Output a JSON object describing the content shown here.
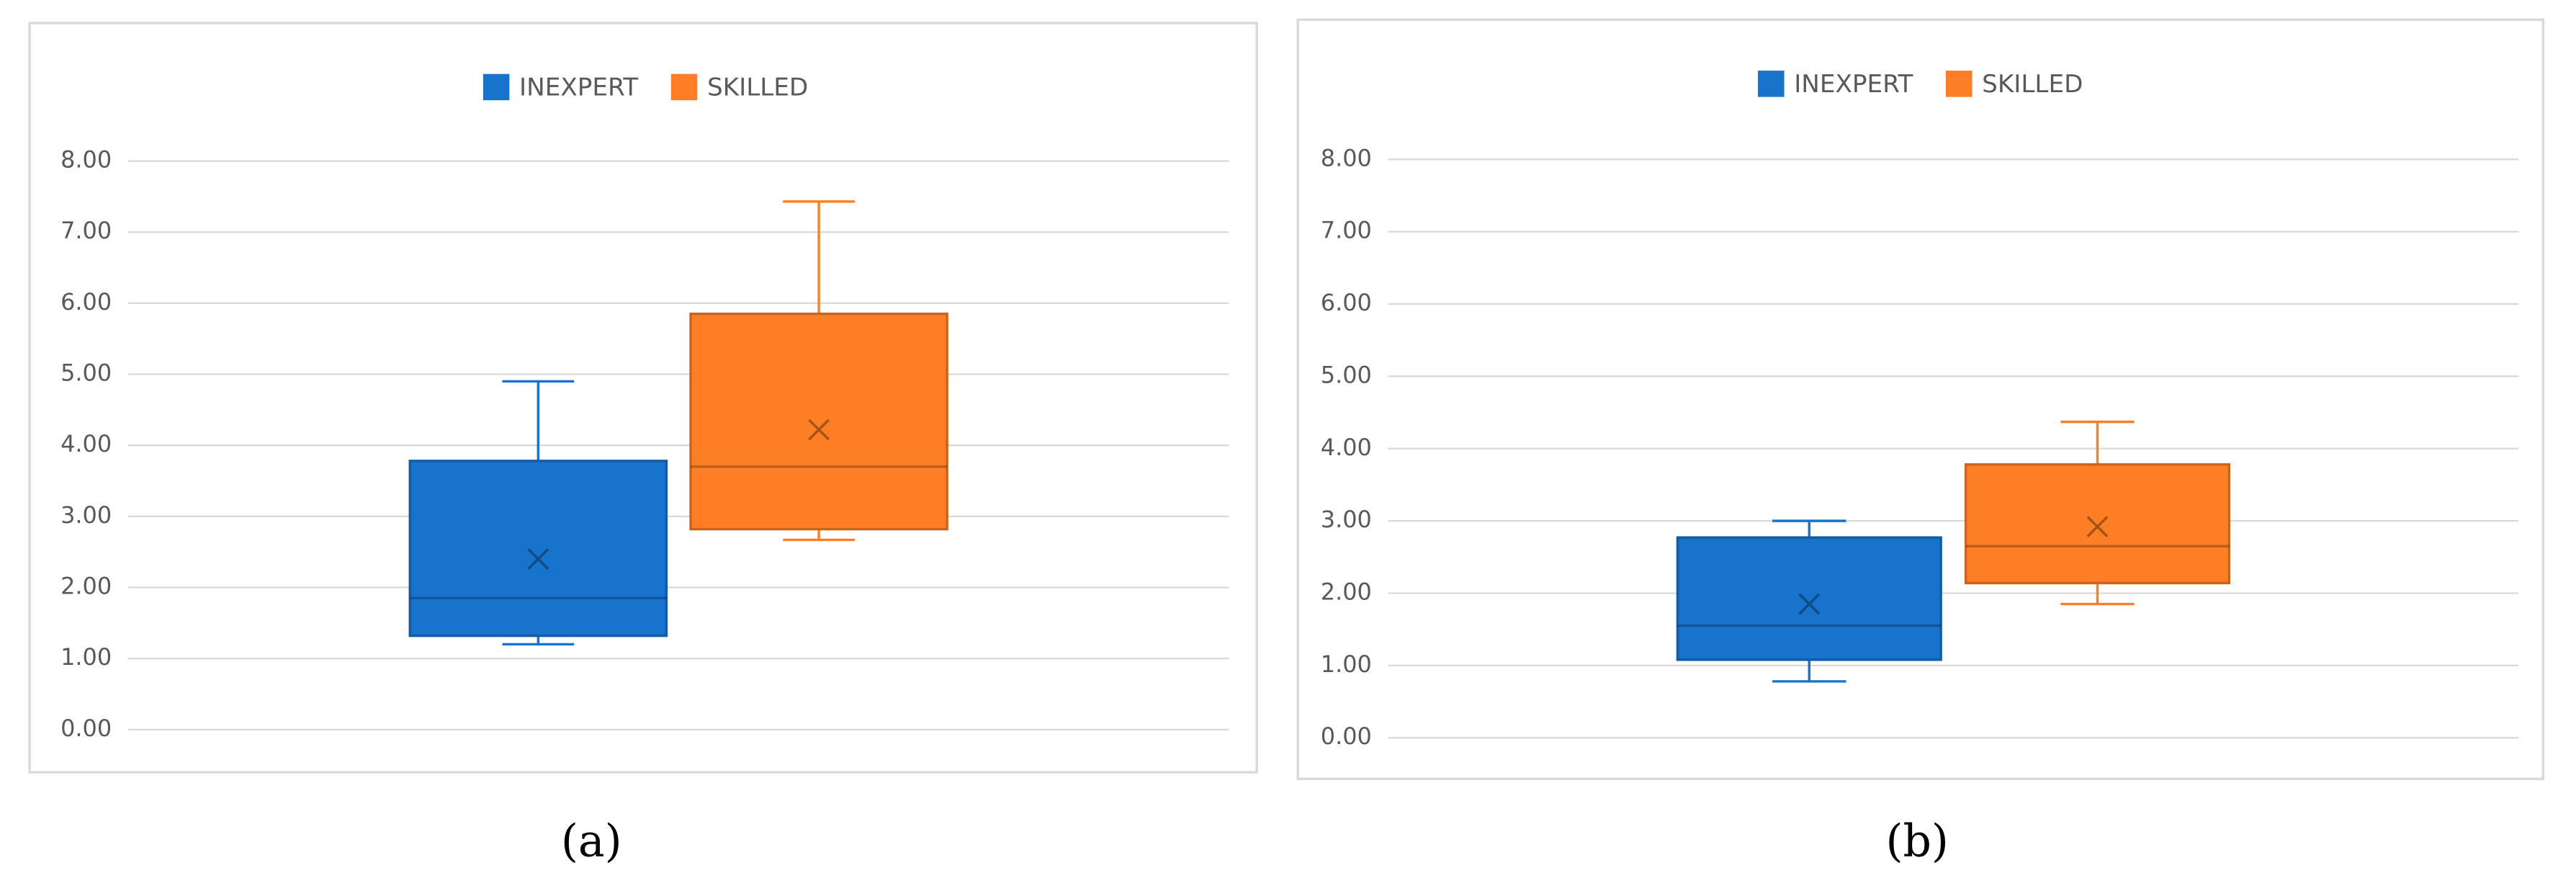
{
  "chart_data": [
    {
      "type": "box",
      "caption": "(a)",
      "legend": "top",
      "grid": true,
      "ylim": [
        0,
        8
      ],
      "yticks": [
        {
          "value": 0,
          "label": "0.00"
        },
        {
          "value": 1,
          "label": "1.00"
        },
        {
          "value": 2,
          "label": "2.00"
        },
        {
          "value": 3,
          "label": "3.00"
        },
        {
          "value": 4,
          "label": "4.00"
        },
        {
          "value": 5,
          "label": "5.00"
        },
        {
          "value": 6,
          "label": "6.00"
        },
        {
          "value": 7,
          "label": "7.00"
        },
        {
          "value": 8,
          "label": "8.00"
        }
      ],
      "series": [
        {
          "name": "INEXPERT",
          "color": "#1873cc",
          "min": 1.2,
          "q1": 1.32,
          "median": 1.85,
          "q3": 3.78,
          "max": 4.9,
          "mean": 2.4
        },
        {
          "name": "SKILLED",
          "color": "#fd7e25",
          "min": 2.67,
          "q1": 2.82,
          "median": 3.7,
          "q3": 5.85,
          "max": 7.43,
          "mean": 4.22
        }
      ]
    },
    {
      "type": "box",
      "caption": "(b)",
      "legend": "top",
      "grid": true,
      "ylim": [
        0,
        8
      ],
      "yticks": [
        {
          "value": 0,
          "label": "0.00"
        },
        {
          "value": 1,
          "label": "1.00"
        },
        {
          "value": 2,
          "label": "2.00"
        },
        {
          "value": 3,
          "label": "3.00"
        },
        {
          "value": 4,
          "label": "4.00"
        },
        {
          "value": 5,
          "label": "5.00"
        },
        {
          "value": 6,
          "label": "6.00"
        },
        {
          "value": 7,
          "label": "7.00"
        },
        {
          "value": 8,
          "label": "8.00"
        }
      ],
      "series": [
        {
          "name": "INEXPERT",
          "color": "#1873cc",
          "min": 0.78,
          "q1": 1.08,
          "median": 1.55,
          "q3": 2.77,
          "max": 3.0,
          "mean": 1.85
        },
        {
          "name": "SKILLED",
          "color": "#fd7e25",
          "min": 1.85,
          "q1": 2.14,
          "median": 2.65,
          "q3": 3.78,
          "max": 4.37,
          "mean": 2.92
        }
      ]
    }
  ]
}
